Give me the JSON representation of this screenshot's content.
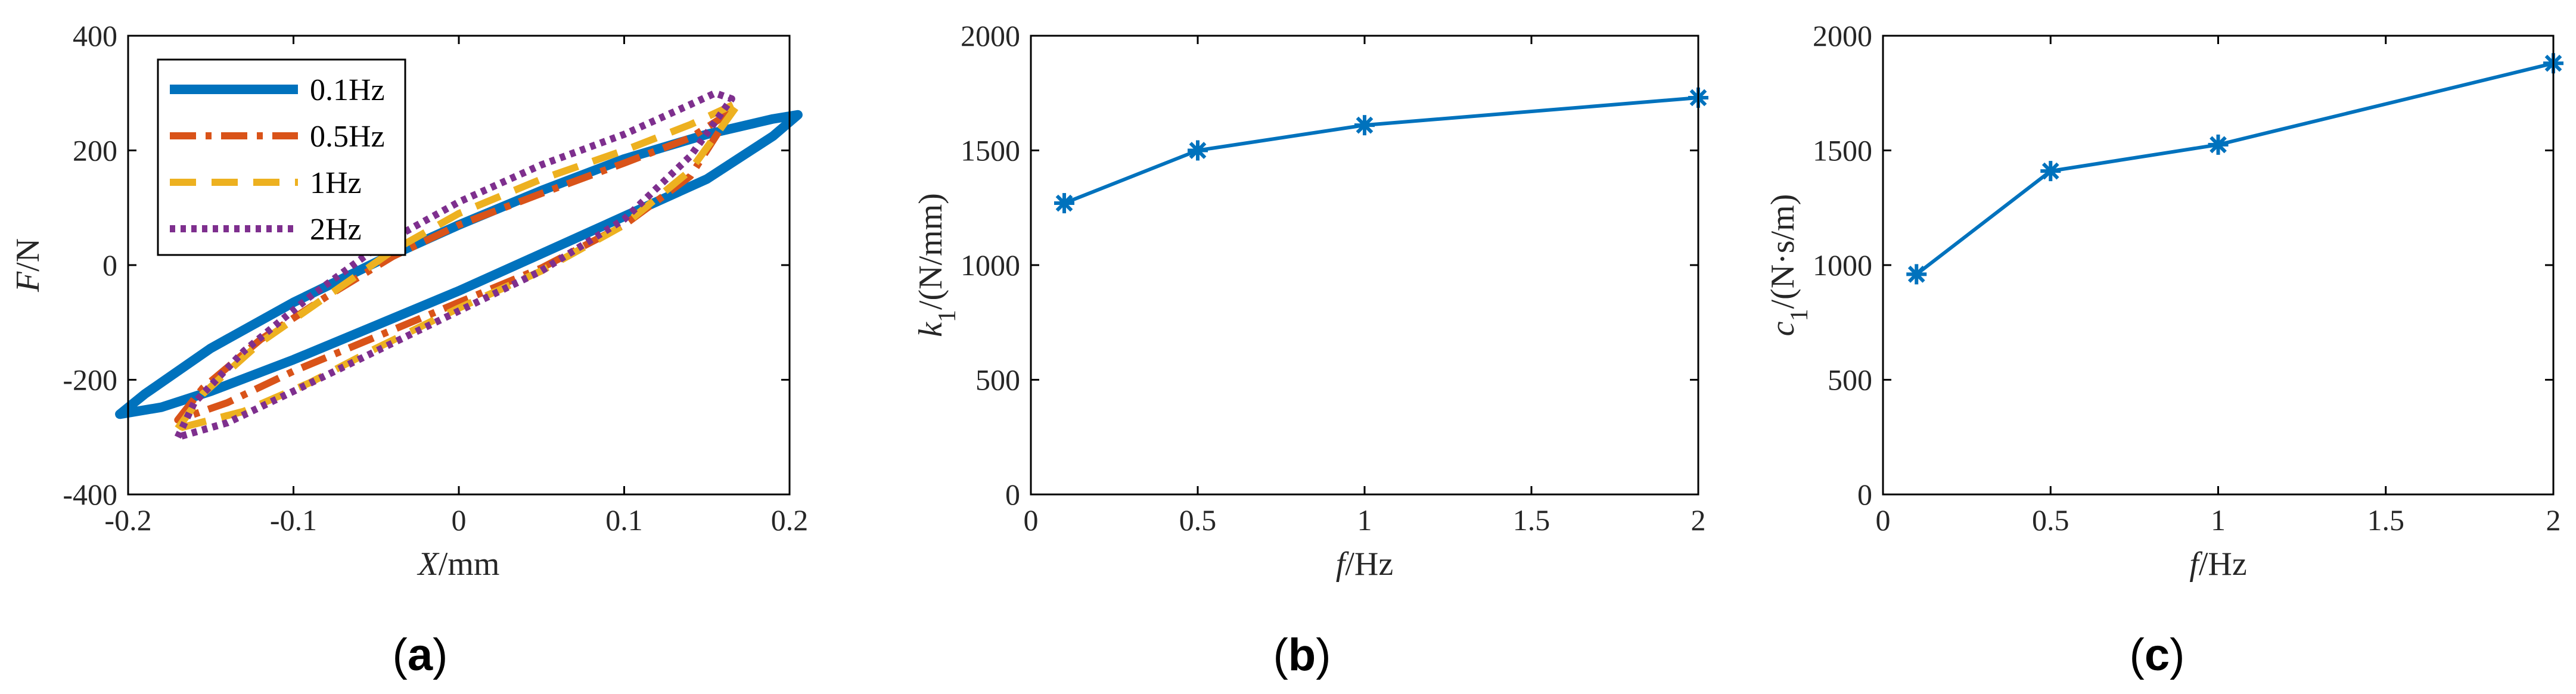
{
  "chart_data": [
    {
      "panel": "(a)",
      "panel_letter": "a",
      "type": "line",
      "xlabel_var": "X",
      "xlabel_unit": "/mm",
      "ylabel_var": "F",
      "ylabel_unit": "/N",
      "xlim": [
        -0.2,
        0.2
      ],
      "ylim": [
        -400,
        400
      ],
      "xticks": [
        -0.2,
        -0.1,
        0,
        0.1,
        0.2
      ],
      "xtick_labels": [
        "-0.2",
        "-0.1",
        "0",
        "0.1",
        "0.2"
      ],
      "yticks": [
        -400,
        -200,
        0,
        200,
        400
      ],
      "ytick_labels": [
        "-400",
        "-200",
        "0",
        "200",
        "400"
      ],
      "legend_position": "top-left",
      "series": [
        {
          "name": "0.1Hz",
          "color": "#0072BD",
          "style": "solid",
          "upper": [
            [
              -0.205,
              -260
            ],
            [
              -0.19,
              -225
            ],
            [
              -0.15,
              -145
            ],
            [
              -0.1,
              -65
            ],
            [
              -0.05,
              5
            ],
            [
              0,
              70
            ],
            [
              0.05,
              130
            ],
            [
              0.1,
              185
            ],
            [
              0.15,
              228
            ],
            [
              0.19,
              255
            ],
            [
              0.205,
              262
            ]
          ],
          "lower": [
            [
              -0.205,
              -260
            ],
            [
              -0.18,
              -248
            ],
            [
              -0.15,
              -220
            ],
            [
              -0.1,
              -165
            ],
            [
              -0.05,
              -105
            ],
            [
              0,
              -45
            ],
            [
              0.05,
              20
            ],
            [
              0.1,
              85
            ],
            [
              0.15,
              150
            ],
            [
              0.19,
              225
            ],
            [
              0.205,
              262
            ]
          ]
        },
        {
          "name": "0.5Hz",
          "color": "#D95319",
          "style": "dashdot",
          "upper": [
            [
              -0.17,
              -270
            ],
            [
              -0.155,
              -215
            ],
            [
              -0.12,
              -130
            ],
            [
              -0.08,
              -55
            ],
            [
              -0.04,
              15
            ],
            [
              0,
              70
            ],
            [
              0.05,
              125
            ],
            [
              0.1,
              178
            ],
            [
              0.14,
              222
            ],
            [
              0.165,
              268
            ]
          ],
          "lower": [
            [
              -0.17,
              -270
            ],
            [
              -0.14,
              -240
            ],
            [
              -0.1,
              -185
            ],
            [
              -0.05,
              -125
            ],
            [
              0,
              -65
            ],
            [
              0.05,
              -5
            ],
            [
              0.1,
              70
            ],
            [
              0.14,
              155
            ],
            [
              0.165,
              268
            ]
          ]
        },
        {
          "name": "1Hz",
          "color": "#EDB120",
          "style": "dashed",
          "upper": [
            [
              -0.17,
              -285
            ],
            [
              -0.155,
              -225
            ],
            [
              -0.12,
              -135
            ],
            [
              -0.08,
              -55
            ],
            [
              -0.04,
              25
            ],
            [
              0,
              90
            ],
            [
              0.05,
              150
            ],
            [
              0.1,
              200
            ],
            [
              0.14,
              245
            ],
            [
              0.17,
              285
            ]
          ],
          "lower": [
            [
              -0.17,
              -285
            ],
            [
              -0.13,
              -255
            ],
            [
              -0.09,
              -205
            ],
            [
              -0.05,
              -145
            ],
            [
              0,
              -75
            ],
            [
              0.05,
              -10
            ],
            [
              0.1,
              70
            ],
            [
              0.14,
              165
            ],
            [
              0.17,
              285
            ]
          ]
        },
        {
          "name": "2Hz",
          "color": "#7E2F8E",
          "style": "dotted",
          "upper": [
            [
              -0.17,
              -300
            ],
            [
              -0.16,
              -240
            ],
            [
              -0.13,
              -150
            ],
            [
              -0.09,
              -55
            ],
            [
              -0.05,
              30
            ],
            [
              0,
              110
            ],
            [
              0.05,
              175
            ],
            [
              0.1,
              228
            ],
            [
              0.14,
              280
            ],
            [
              0.155,
              300
            ],
            [
              0.165,
              290
            ]
          ],
          "lower": [
            [
              -0.17,
              -300
            ],
            [
              -0.14,
              -275
            ],
            [
              -0.1,
              -220
            ],
            [
              -0.05,
              -150
            ],
            [
              0,
              -80
            ],
            [
              0.05,
              -10
            ],
            [
              0.1,
              80
            ],
            [
              0.14,
              190
            ],
            [
              0.165,
              290
            ]
          ]
        }
      ]
    },
    {
      "panel": "(b)",
      "panel_letter": "b",
      "type": "line",
      "xlabel_var": "f",
      "xlabel_unit": "/Hz",
      "ylabel_var": "k",
      "ylabel_sub": "1",
      "ylabel_unit": "/(N/mm)",
      "xlim": [
        0,
        2
      ],
      "ylim": [
        0,
        2000
      ],
      "xticks": [
        0,
        0.5,
        1,
        1.5,
        2
      ],
      "xtick_labels": [
        "0",
        "0.5",
        "1",
        "1.5",
        "2"
      ],
      "yticks": [
        0,
        500,
        1000,
        1500,
        2000
      ],
      "ytick_labels": [
        "0",
        "500",
        "1000",
        "1500",
        "2000"
      ],
      "color": "#0072BD",
      "marker": "asterisk",
      "x": [
        0.1,
        0.5,
        1,
        2
      ],
      "y": [
        1270,
        1500,
        1610,
        1730
      ]
    },
    {
      "panel": "(c)",
      "panel_letter": "c",
      "type": "line",
      "xlabel_var": "f",
      "xlabel_unit": "/Hz",
      "ylabel_var": "c",
      "ylabel_sub": "1",
      "ylabel_unit": "/(N·s/m)",
      "xlim": [
        0,
        2
      ],
      "ylim": [
        0,
        2000
      ],
      "xticks": [
        0,
        0.5,
        1,
        1.5,
        2
      ],
      "xtick_labels": [
        "0",
        "0.5",
        "1",
        "1.5",
        "2"
      ],
      "yticks": [
        0,
        500,
        1000,
        1500,
        2000
      ],
      "ytick_labels": [
        "0",
        "500",
        "1000",
        "1500",
        "2000"
      ],
      "color": "#0072BD",
      "marker": "asterisk",
      "x": [
        0.1,
        0.5,
        1,
        2
      ],
      "y": [
        960,
        1410,
        1525,
        1880
      ]
    }
  ]
}
